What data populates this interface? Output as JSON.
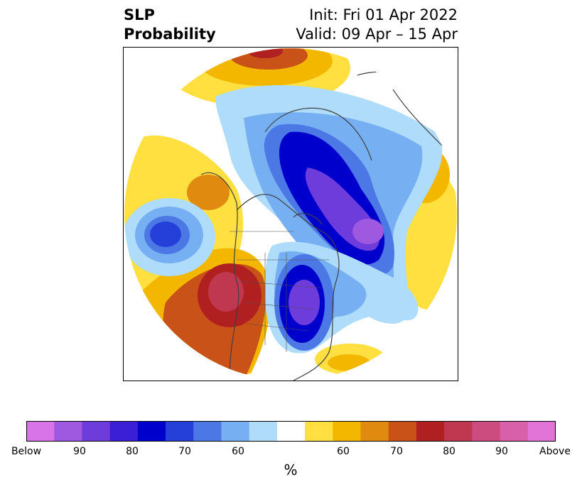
{
  "header": {
    "title_line1": "SLP",
    "title_line2": "Probability",
    "init_text": "Init: Fri 01 Apr 2022",
    "valid_text": "Valid: 09 Apr – 15 Apr"
  },
  "colorbar": {
    "unit": "%",
    "colors": [
      "#d974e8",
      "#9f58e0",
      "#6f3cdc",
      "#3a1fd6",
      "#0000cc",
      "#2540d8",
      "#4c78e6",
      "#76b0f2",
      "#aedcfa",
      "#ffffff",
      "#ffe040",
      "#f4b700",
      "#e08a10",
      "#c85218",
      "#b02020",
      "#c03850",
      "#cc4c80",
      "#d860aa",
      "#e274d8"
    ],
    "tick_labels": [
      "Below",
      "90",
      "80",
      "70",
      "60",
      "60",
      "70",
      "80",
      "90",
      "Above"
    ]
  },
  "map": {
    "features": [
      {
        "name": "anomaly-below-arctic-canada",
        "category": "below",
        "level": 5
      },
      {
        "name": "anomaly-below-arctic-core",
        "category": "below",
        "level": 8
      },
      {
        "name": "anomaly-below-eastern-us",
        "category": "below",
        "level": 6
      },
      {
        "name": "anomaly-below-north-pacific",
        "category": "below",
        "level": 4
      },
      {
        "name": "anomaly-above-western-us",
        "category": "above",
        "level": 5
      },
      {
        "name": "anomaly-above-siberia",
        "category": "above",
        "level": 4
      },
      {
        "name": "anomaly-above-europe",
        "category": "above",
        "level": 2
      }
    ]
  }
}
